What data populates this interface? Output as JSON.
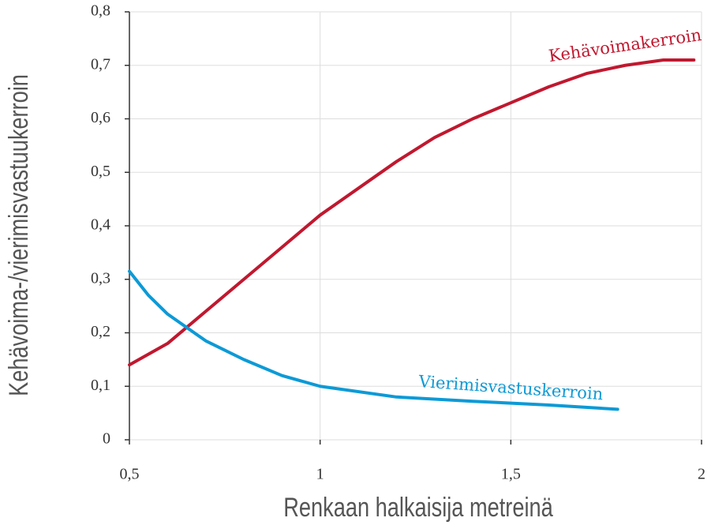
{
  "chart_data": {
    "type": "line",
    "xlabel": "Renkaan halkaisija metreinä",
    "ylabel": "Kehävoima-/vierimisvastuukerroin",
    "xlim": [
      0.5,
      2
    ],
    "ylim": [
      0,
      0.8
    ],
    "xticks": [
      {
        "value": 0.5,
        "label": "0,5"
      },
      1,
      {
        "value": 1.5,
        "label": "1,5"
      },
      2
    ],
    "yticks": [
      0,
      {
        "value": 0.1,
        "label": "0,1"
      },
      {
        "value": 0.2,
        "label": "0,2"
      },
      {
        "value": 0.3,
        "label": "0,3"
      },
      {
        "value": 0.4,
        "label": "0,4"
      },
      {
        "value": 0.5,
        "label": "0,5"
      },
      {
        "value": 0.6,
        "label": "0,6"
      },
      {
        "value": 0.7,
        "label": "0,7"
      },
      {
        "value": 0.8,
        "label": "0,8"
      }
    ],
    "grid": true,
    "series": [
      {
        "name": "Kehävoimakerroin",
        "color": "#c0182f",
        "x": [
          0.5,
          0.6,
          0.7,
          0.8,
          0.9,
          1.0,
          1.1,
          1.2,
          1.3,
          1.4,
          1.5,
          1.6,
          1.7,
          1.8,
          1.9,
          1.98
        ],
        "values": [
          0.14,
          0.18,
          0.24,
          0.3,
          0.36,
          0.42,
          0.47,
          0.52,
          0.565,
          0.6,
          0.63,
          0.66,
          0.685,
          0.7,
          0.71,
          0.71
        ]
      },
      {
        "name": "Vierimisvastuskerroin",
        "color": "#0c9ad6",
        "x": [
          0.5,
          0.55,
          0.6,
          0.7,
          0.8,
          0.9,
          1.0,
          1.2,
          1.4,
          1.6,
          1.78
        ],
        "values": [
          0.315,
          0.27,
          0.235,
          0.185,
          0.15,
          0.12,
          0.1,
          0.08,
          0.072,
          0.065,
          0.057
        ]
      }
    ]
  }
}
